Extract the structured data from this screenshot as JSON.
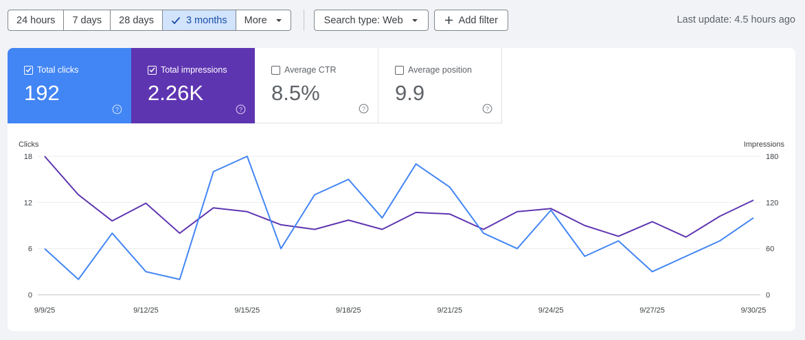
{
  "toolbar": {
    "ranges": [
      "24 hours",
      "7 days",
      "28 days",
      "3 months",
      "More"
    ],
    "active_range": "3 months",
    "search_type_label": "Search type: Web",
    "add_filter_label": "Add filter",
    "last_update": "Last update: 4.5 hours ago"
  },
  "metrics": [
    {
      "label": "Total clicks",
      "value": "192",
      "checked": true,
      "color": "#4285f4"
    },
    {
      "label": "Total impressions",
      "value": "2.26K",
      "checked": true,
      "color": "#5e35b1"
    },
    {
      "label": "Average CTR",
      "value": "8.5%",
      "checked": false
    },
    {
      "label": "Average position",
      "value": "9.9",
      "checked": false
    }
  ],
  "chart_data": {
    "type": "line",
    "left_axis_label": "Clicks",
    "right_axis_label": "Impressions",
    "left_ticks": [
      "0",
      "6",
      "12",
      "18"
    ],
    "right_ticks": [
      "0",
      "60",
      "120",
      "180"
    ],
    "left_range": [
      0,
      18
    ],
    "right_range": [
      0,
      180
    ],
    "x_tick_labels": [
      "9/9/25",
      "9/12/25",
      "9/15/25",
      "9/18/25",
      "9/21/25",
      "9/24/25",
      "9/27/25",
      "9/30/25"
    ],
    "x_count": 22,
    "grid": true,
    "series": [
      {
        "name": "Total clicks",
        "axis": "left",
        "color": "#4285f4",
        "values": [
          6,
          2,
          8,
          3,
          2,
          16,
          18,
          6,
          13,
          15,
          10,
          17,
          14,
          8,
          6,
          11,
          5,
          7,
          3,
          5,
          7,
          10
        ]
      },
      {
        "name": "Total impressions",
        "axis": "right",
        "color": "#5e35b1",
        "values": [
          180,
          130,
          96,
          119,
          80,
          113,
          108,
          91,
          85,
          97,
          85,
          107,
          105,
          85,
          108,
          112,
          90,
          76,
          95,
          75,
          102,
          123
        ]
      }
    ]
  }
}
